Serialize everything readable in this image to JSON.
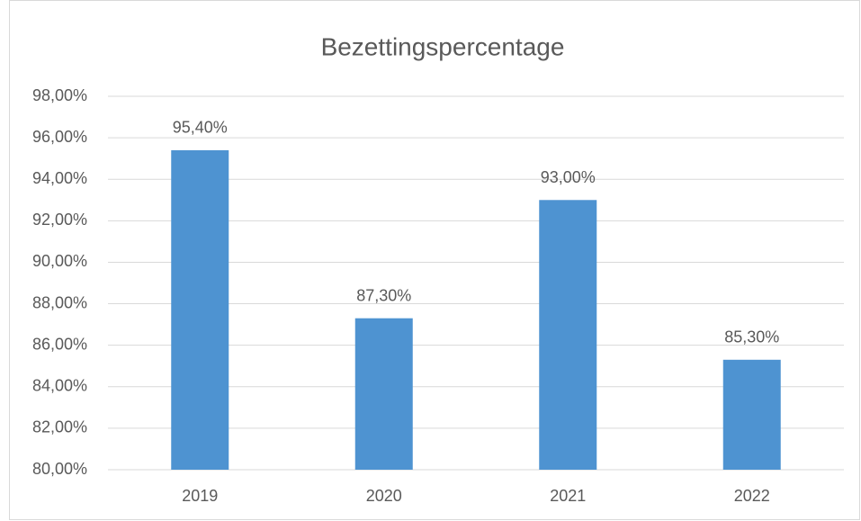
{
  "chart_data": {
    "type": "bar",
    "title": "Bezettingspercentage",
    "categories": [
      "2019",
      "2020",
      "2021",
      "2022"
    ],
    "values": [
      95.4,
      87.3,
      93.0,
      85.3
    ],
    "value_labels": [
      "95,40%",
      "87,30%",
      "93,00%",
      "85,30%"
    ],
    "color": "#4e93d1",
    "ylim": [
      80,
      98
    ],
    "yticks": [
      {
        "value": 80,
        "label": "80,00%"
      },
      {
        "value": 82,
        "label": "82,00%"
      },
      {
        "value": 84,
        "label": "84,00%"
      },
      {
        "value": 86,
        "label": "86,00%"
      },
      {
        "value": 88,
        "label": "88,00%"
      },
      {
        "value": 90,
        "label": "90,00%"
      },
      {
        "value": 92,
        "label": "92,00%"
      },
      {
        "value": 94,
        "label": "94,00%"
      },
      {
        "value": 96,
        "label": "96,00%"
      },
      {
        "value": 98,
        "label": "98,00%"
      }
    ],
    "grid": true
  }
}
